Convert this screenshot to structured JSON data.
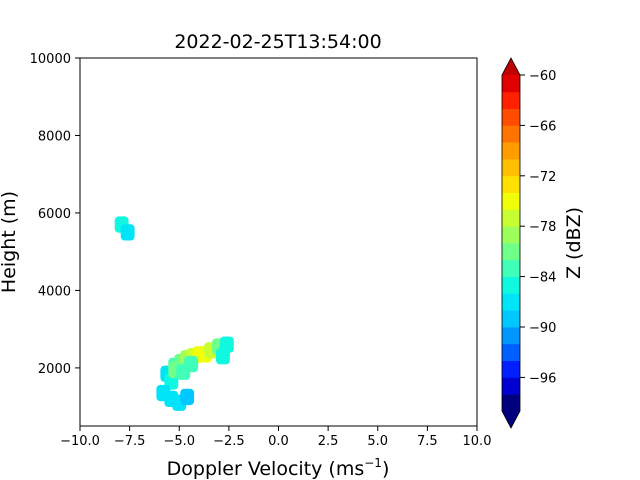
{
  "chart_data": {
    "type": "heatmap",
    "title": "2022-02-25T13:54:00",
    "xlabel": "Doppler Velocity (ms",
    "xlabel_sup": "−1",
    "xlabel_close": ")",
    "ylabel": "Height (m)",
    "xlim": [
      -10.0,
      10.0
    ],
    "ylim": [
      500,
      10000
    ],
    "x_ticks": [
      -10.0,
      -7.5,
      -5.0,
      -2.5,
      0.0,
      2.5,
      5.0,
      7.5,
      10.0
    ],
    "x_tick_labels": [
      "−10.0",
      "−7.5",
      "−5.0",
      "−2.5",
      "0.0",
      "2.5",
      "5.0",
      "7.5",
      "10.0"
    ],
    "y_ticks": [
      2000,
      4000,
      6000,
      8000,
      10000
    ],
    "y_tick_labels": [
      "2000",
      "4000",
      "6000",
      "8000",
      "10000"
    ],
    "colorbar": {
      "label": "Z (dBZ)",
      "vmin": -100,
      "vmax": -60,
      "ticks": [
        -60,
        -66,
        -72,
        -78,
        -84,
        -90,
        -96
      ],
      "tick_labels": [
        "−60",
        "−66",
        "−72",
        "−78",
        "−84",
        "−90",
        "−96"
      ],
      "levels": [
        -100,
        -98,
        -96,
        -94,
        -92,
        -90,
        -88,
        -86,
        -84,
        -82,
        -80,
        -78,
        -76,
        -74,
        -72,
        -70,
        -68,
        -66,
        -64,
        -62,
        -60
      ],
      "colors": [
        "#00007f",
        "#0000d0",
        "#0020ff",
        "#0060ff",
        "#0098ff",
        "#00c8ff",
        "#00e4f8",
        "#10f8e0",
        "#40ffb8",
        "#70ff88",
        "#9cff5c",
        "#c8ff30",
        "#f0ff08",
        "#ffe000",
        "#ffbf00",
        "#ff9c00",
        "#ff7400",
        "#ff4c00",
        "#ff2000",
        "#e00000"
      ],
      "under_color": "#00007f",
      "over_color": "#bf0000",
      "extend": "both"
    },
    "cells": [
      {
        "x": -7.9,
        "y": 5700,
        "z": -86
      },
      {
        "x": -7.6,
        "y": 5500,
        "z": -87
      },
      {
        "x": -5.6,
        "y": 1850,
        "z": -87
      },
      {
        "x": -5.4,
        "y": 1650,
        "z": -86
      },
      {
        "x": -5.2,
        "y": 2050,
        "z": -84
      },
      {
        "x": -4.9,
        "y": 2150,
        "z": -81
      },
      {
        "x": -4.6,
        "y": 2250,
        "z": -79
      },
      {
        "x": -4.3,
        "y": 2300,
        "z": -78
      },
      {
        "x": -4.0,
        "y": 2350,
        "z": -76
      },
      {
        "x": -3.7,
        "y": 2350,
        "z": -75
      },
      {
        "x": -3.4,
        "y": 2450,
        "z": -78
      },
      {
        "x": -3.0,
        "y": 2550,
        "z": -82
      },
      {
        "x": -2.6,
        "y": 2600,
        "z": -86
      },
      {
        "x": -2.8,
        "y": 2300,
        "z": -86
      },
      {
        "x": -5.8,
        "y": 1350,
        "z": -88
      },
      {
        "x": -5.4,
        "y": 1200,
        "z": -88
      },
      {
        "x": -5.0,
        "y": 1100,
        "z": -88
      },
      {
        "x": -4.6,
        "y": 1250,
        "z": -89
      },
      {
        "x": -5.2,
        "y": 1950,
        "z": -82
      },
      {
        "x": -4.8,
        "y": 1900,
        "z": -84
      },
      {
        "x": -4.4,
        "y": 2100,
        "z": -83
      }
    ]
  }
}
